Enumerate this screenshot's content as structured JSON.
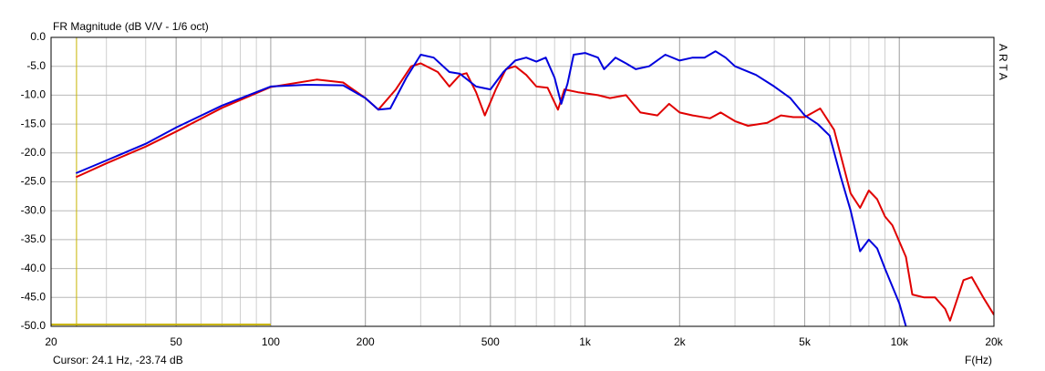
{
  "chart_data": {
    "type": "line",
    "title": "FR Magnitude (dB V/V - 1/6 oct)",
    "brand": "ARTA",
    "x_label": "F(Hz)",
    "cursor": {
      "x": 24.1,
      "label": "Cursor: 24.1 Hz, -23.74 dB",
      "color": "#c8b400"
    },
    "log_x": true,
    "grid": true,
    "xlim": [
      20,
      20000
    ],
    "xticks": [
      20,
      50,
      100,
      200,
      500,
      {
        "value": 1000,
        "label": "1k"
      },
      {
        "value": 2000,
        "label": "2k"
      },
      {
        "value": 5000,
        "label": "5k"
      },
      {
        "value": 10000,
        "label": "10k"
      },
      {
        "value": 20000,
        "label": "20k"
      }
    ],
    "ylim": [
      -50,
      0
    ],
    "yticks": [
      {
        "value": 0,
        "label": "0.0"
      },
      {
        "value": -5,
        "label": "-5.0"
      },
      {
        "value": -10,
        "label": "-10.0"
      },
      {
        "value": -15,
        "label": "-15.0"
      },
      {
        "value": -20,
        "label": "-20.0"
      },
      {
        "value": -25,
        "label": "-25.0"
      },
      {
        "value": -30,
        "label": "-30.0"
      },
      {
        "value": -35,
        "label": "-35.0"
      },
      {
        "value": -40,
        "label": "-40.0"
      },
      {
        "value": -45,
        "label": "-45.0"
      },
      {
        "value": -50,
        "label": "-50.0"
      }
    ],
    "series": [
      {
        "color": "#e00000",
        "x": [
          24,
          30,
          40,
          50,
          70,
          100,
          140,
          170,
          200,
          220,
          250,
          280,
          300,
          340,
          370,
          400,
          420,
          450,
          480,
          520,
          560,
          600,
          650,
          700,
          760,
          820,
          860,
          950,
          1100,
          1200,
          1350,
          1500,
          1700,
          1850,
          2000,
          2200,
          2500,
          2700,
          3000,
          3300,
          3800,
          4200,
          4600,
          5000,
          5600,
          6200,
          7000,
          7500,
          8000,
          8500,
          9000,
          9500,
          10500,
          11000,
          12000,
          13000,
          14000,
          14500,
          16000,
          17000,
          18500,
          20000
        ],
        "values": [
          -24.2,
          -21.8,
          -18.9,
          -16.3,
          -12.2,
          -8.6,
          -7.3,
          -7.8,
          -10.5,
          -12.5,
          -9,
          -5,
          -4.5,
          -6,
          -8.5,
          -6.5,
          -6.2,
          -9.5,
          -13.5,
          -9,
          -5.5,
          -5,
          -6.5,
          -8.5,
          -8.7,
          -12.5,
          -9,
          -9.5,
          -10,
          -10.5,
          -10,
          -13,
          -13.5,
          -11.5,
          -13,
          -13.5,
          -14,
          -13,
          -14.5,
          -15.3,
          -14.8,
          -13.5,
          -13.8,
          -13.8,
          -12.3,
          -16,
          -27,
          -29.5,
          -26.5,
          -28,
          -31,
          -32.5,
          -38,
          -44.5,
          -45,
          -45,
          -47,
          -49,
          -42,
          -41.5,
          -45,
          -48
        ]
      },
      {
        "color": "#0000dd",
        "x": [
          24,
          30,
          40,
          50,
          70,
          100,
          130,
          170,
          200,
          220,
          240,
          270,
          300,
          330,
          370,
          400,
          450,
          500,
          550,
          600,
          650,
          700,
          750,
          800,
          840,
          880,
          920,
          1000,
          1100,
          1150,
          1250,
          1350,
          1450,
          1600,
          1800,
          2000,
          2200,
          2400,
          2600,
          2800,
          3000,
          3500,
          4000,
          4500,
          5000,
          5500,
          6000,
          6500,
          7000,
          7500,
          8000,
          8500,
          9000,
          10000,
          10500
        ],
        "values": [
          -23.5,
          -21.3,
          -18.4,
          -15.6,
          -11.8,
          -8.5,
          -8.2,
          -8.3,
          -10.5,
          -12.5,
          -12.3,
          -7,
          -3,
          -3.5,
          -6,
          -6.3,
          -8.5,
          -9,
          -6,
          -4,
          -3.5,
          -4.2,
          -3.5,
          -7,
          -11.5,
          -8,
          -3,
          -2.7,
          -3.5,
          -5.5,
          -3.5,
          -4.5,
          -5.5,
          -5,
          -3,
          -4,
          -3.5,
          -3.5,
          -2.4,
          -3.5,
          -5,
          -6.5,
          -8.5,
          -10.5,
          -13.5,
          -15,
          -17,
          -24,
          -30,
          -37,
          -35,
          -36.5,
          -40,
          -46,
          -50
        ]
      }
    ]
  }
}
